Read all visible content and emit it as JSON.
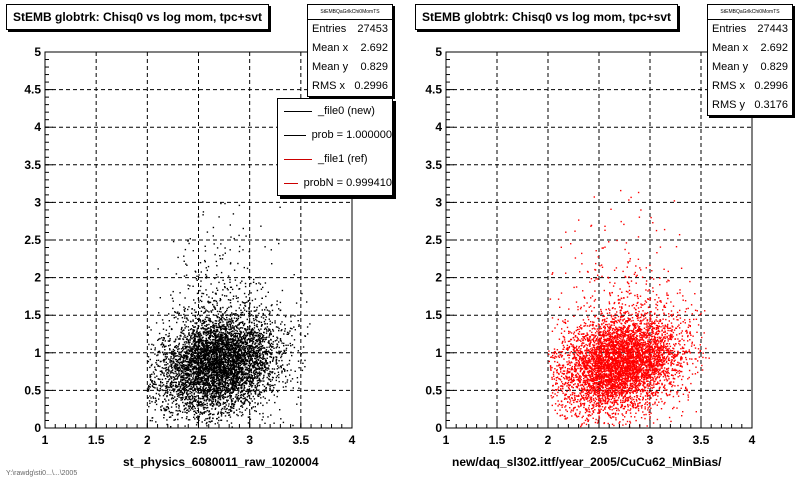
{
  "chart_data": [
    {
      "type": "scatter",
      "title": "StEMB globtrk: Chisq0 vs log mom, tpc+svt",
      "xlabel": "st_physics_6080011_raw_1020004",
      "ylabel": "",
      "xlim": [
        1,
        4
      ],
      "ylim": [
        0,
        5
      ],
      "xticks": [
        "1",
        "1.5",
        "2",
        "2.5",
        "3",
        "3.5",
        "4"
      ],
      "yticks": [
        "0",
        "0.5",
        "1",
        "1.5",
        "2",
        "2.5",
        "3",
        "3.5",
        "4",
        "4.5",
        "5"
      ],
      "grid": true,
      "marker_color": "#000000",
      "distribution": {
        "x_min": 2.0,
        "x_max": 3.6,
        "x_center": 2.7,
        "y_center": 0.85,
        "y_max": 3.2
      },
      "stats": {
        "name": "StEMBQaGrlkChi0MomTS",
        "rows": [
          {
            "label": "Entries",
            "value": "27453"
          },
          {
            "label": "Mean x",
            "value": "2.692"
          },
          {
            "label": "Mean y",
            "value": "0.829"
          },
          {
            "label": "RMS x",
            "value": "0.2996"
          }
        ]
      },
      "legend": {
        "placement": "top-right",
        "entries": [
          {
            "label": "_file0 (new)",
            "color": "#000000"
          },
          {
            "label": "prob = 1.000000",
            "color": "#000000"
          },
          {
            "label": "_file1 (ref)",
            "color": "#cc0000"
          },
          {
            "label": "probN = 0.999410",
            "color": "#cc0000"
          }
        ]
      }
    },
    {
      "type": "scatter",
      "title": "StEMB globtrk: Chisq0 vs log mom, tpc+svt",
      "xlabel": "new/daq_sl302.ittf/year_2005/CuCu62_MinBias/",
      "ylabel": "",
      "xlim": [
        1,
        4
      ],
      "ylim": [
        0,
        5
      ],
      "xticks": [
        "1",
        "1.5",
        "2",
        "2.5",
        "3",
        "3.5",
        "4"
      ],
      "yticks": [
        "0",
        "0.5",
        "1",
        "1.5",
        "2",
        "2.5",
        "3",
        "3.5",
        "4",
        "4.5",
        "5"
      ],
      "grid": true,
      "marker_color": "#ff0000",
      "distribution": {
        "x_min": 2.0,
        "x_max": 3.6,
        "x_center": 2.7,
        "y_center": 0.85,
        "y_max": 3.3
      },
      "stats": {
        "name": "StEMBQaGrlkChi0MomTS",
        "rows": [
          {
            "label": "Entries",
            "value": "27443"
          },
          {
            "label": "Mean x",
            "value": "2.692"
          },
          {
            "label": "Mean y",
            "value": "0.829"
          },
          {
            "label": "RMS x",
            "value": "0.2996"
          },
          {
            "label": "RMS y",
            "value": "0.3176"
          }
        ]
      }
    }
  ],
  "footer": "Y:\\rawdg\\sti0...\\...\\2005"
}
